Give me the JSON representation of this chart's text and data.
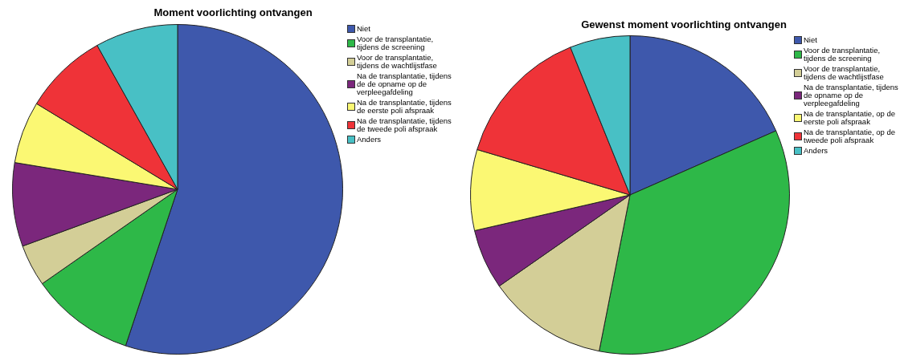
{
  "chart_data": [
    {
      "type": "pie",
      "title": "Moment voorlichting ontvangen",
      "categories": [
        "Niet",
        "Voor de transplantatie, tijdens de screening",
        "Voor de transplantatie, tijdens de wachtlijstfase",
        "Na de transplantatie, tijdens de de opname op de verpleegafdeling",
        "Na de transplantatie, tijdens de eerste poli afspraak",
        "Na de transplantatie, tijdens de tweede poli afspraak",
        "Anders"
      ],
      "values": [
        55.1,
        10.2,
        4.1,
        8.2,
        6.1,
        8.2,
        8.1
      ],
      "colors": [
        "#3e58ac",
        "#2eb848",
        "#d3ce97",
        "#7b277c",
        "#fbf873",
        "#ef3338",
        "#48c0c5"
      ],
      "legend": "top right"
    },
    {
      "type": "pie",
      "title": "Gewenst moment voorlichting ontvangen",
      "categories": [
        "Niet",
        "Voor de transplantatie, tijdens de screening",
        "Voor de transplantatie, tijdens de wachtlijstfase",
        "Na de transplantatie, tijdens de opname op de verpleegafdeling",
        "Na de transplantatie, op de eerste poli afspraak",
        "Na de transplantatie, op de tweede poli afspraak",
        "Anders"
      ],
      "values": [
        18.4,
        34.7,
        12.2,
        6.1,
        8.2,
        14.3,
        6.1
      ],
      "colors": [
        "#3e58ac",
        "#2eb848",
        "#d3ce97",
        "#7b277c",
        "#fbf873",
        "#ef3338",
        "#48c0c5"
      ],
      "legend": "top right"
    }
  ]
}
